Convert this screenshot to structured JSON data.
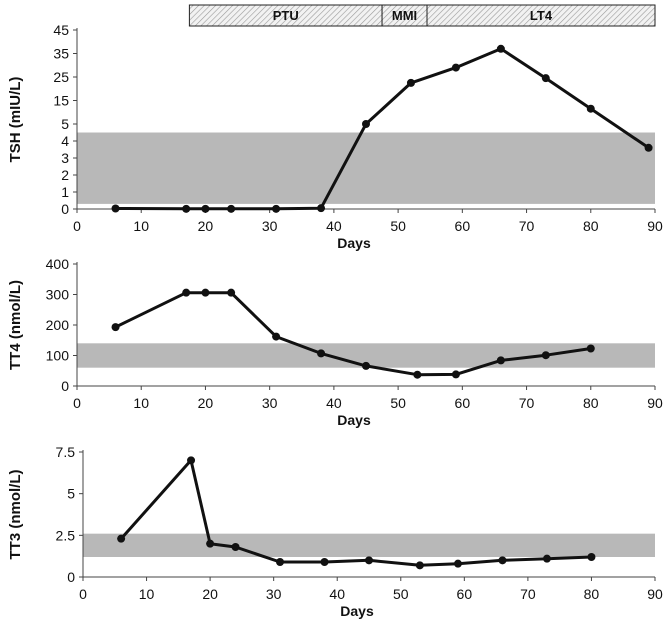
{
  "chart_data": [
    {
      "type": "line",
      "name": "tsh",
      "ylabel": "TSH (mIU/L)",
      "xlabel": "Days",
      "xlim": [
        0,
        90
      ],
      "x_ticks": [
        0,
        10,
        20,
        30,
        40,
        50,
        60,
        70,
        80,
        90
      ],
      "y_scale": "piecewise",
      "y_ticks": [
        0,
        1,
        2,
        3,
        4,
        5,
        15,
        25,
        35,
        45
      ],
      "reference_range": [
        0.3,
        4.5
      ],
      "x": [
        6,
        17,
        20,
        24,
        31,
        38,
        45,
        52,
        59,
        66,
        73,
        80,
        89
      ],
      "values": [
        0.03,
        0.01,
        0.01,
        0.01,
        0.01,
        0.05,
        5.0,
        22.5,
        29.0,
        37.0,
        24.5,
        11.5,
        3.6
      ]
    },
    {
      "type": "line",
      "name": "tt4",
      "ylabel": "TT4 (nmol/L)",
      "xlabel": "Days",
      "xlim": [
        0,
        90
      ],
      "x_ticks": [
        0,
        10,
        20,
        30,
        40,
        50,
        60,
        70,
        80,
        90
      ],
      "ylim": [
        0,
        400
      ],
      "y_ticks": [
        0,
        100,
        200,
        300,
        400
      ],
      "reference_range": [
        60,
        140
      ],
      "x": [
        6,
        17,
        20,
        24,
        31,
        38,
        45,
        53,
        59,
        66,
        73,
        80
      ],
      "values": [
        193,
        306,
        306,
        306,
        162,
        107,
        66,
        37,
        38,
        84,
        101,
        123
      ]
    },
    {
      "type": "line",
      "name": "tt3",
      "ylabel": "TT3 (nmol/L)",
      "xlabel": "Days",
      "xlim": [
        0,
        90
      ],
      "x_ticks": [
        0,
        10,
        20,
        30,
        40,
        50,
        60,
        70,
        80,
        90
      ],
      "ylim": [
        0,
        7.5
      ],
      "y_ticks": [
        0,
        2.5,
        5,
        7.5
      ],
      "reference_range": [
        1.2,
        2.6
      ],
      "x": [
        6,
        17,
        20,
        24,
        31,
        38,
        45,
        53,
        59,
        66,
        73,
        80
      ],
      "values": [
        2.3,
        7.0,
        2.0,
        1.8,
        0.9,
        0.9,
        1.0,
        0.7,
        0.8,
        1.0,
        1.1,
        1.2
      ]
    }
  ],
  "treatment_phases": [
    {
      "label": "PTU",
      "start": 17.5,
      "end": 47.5
    },
    {
      "label": "MMI",
      "start": 47.5,
      "end": 54.5
    },
    {
      "label": "LT4",
      "start": 54.5,
      "end": 90
    }
  ],
  "colors": {
    "line": "#111111",
    "reference_band": "#b8b8b8",
    "axis": "#444444"
  }
}
